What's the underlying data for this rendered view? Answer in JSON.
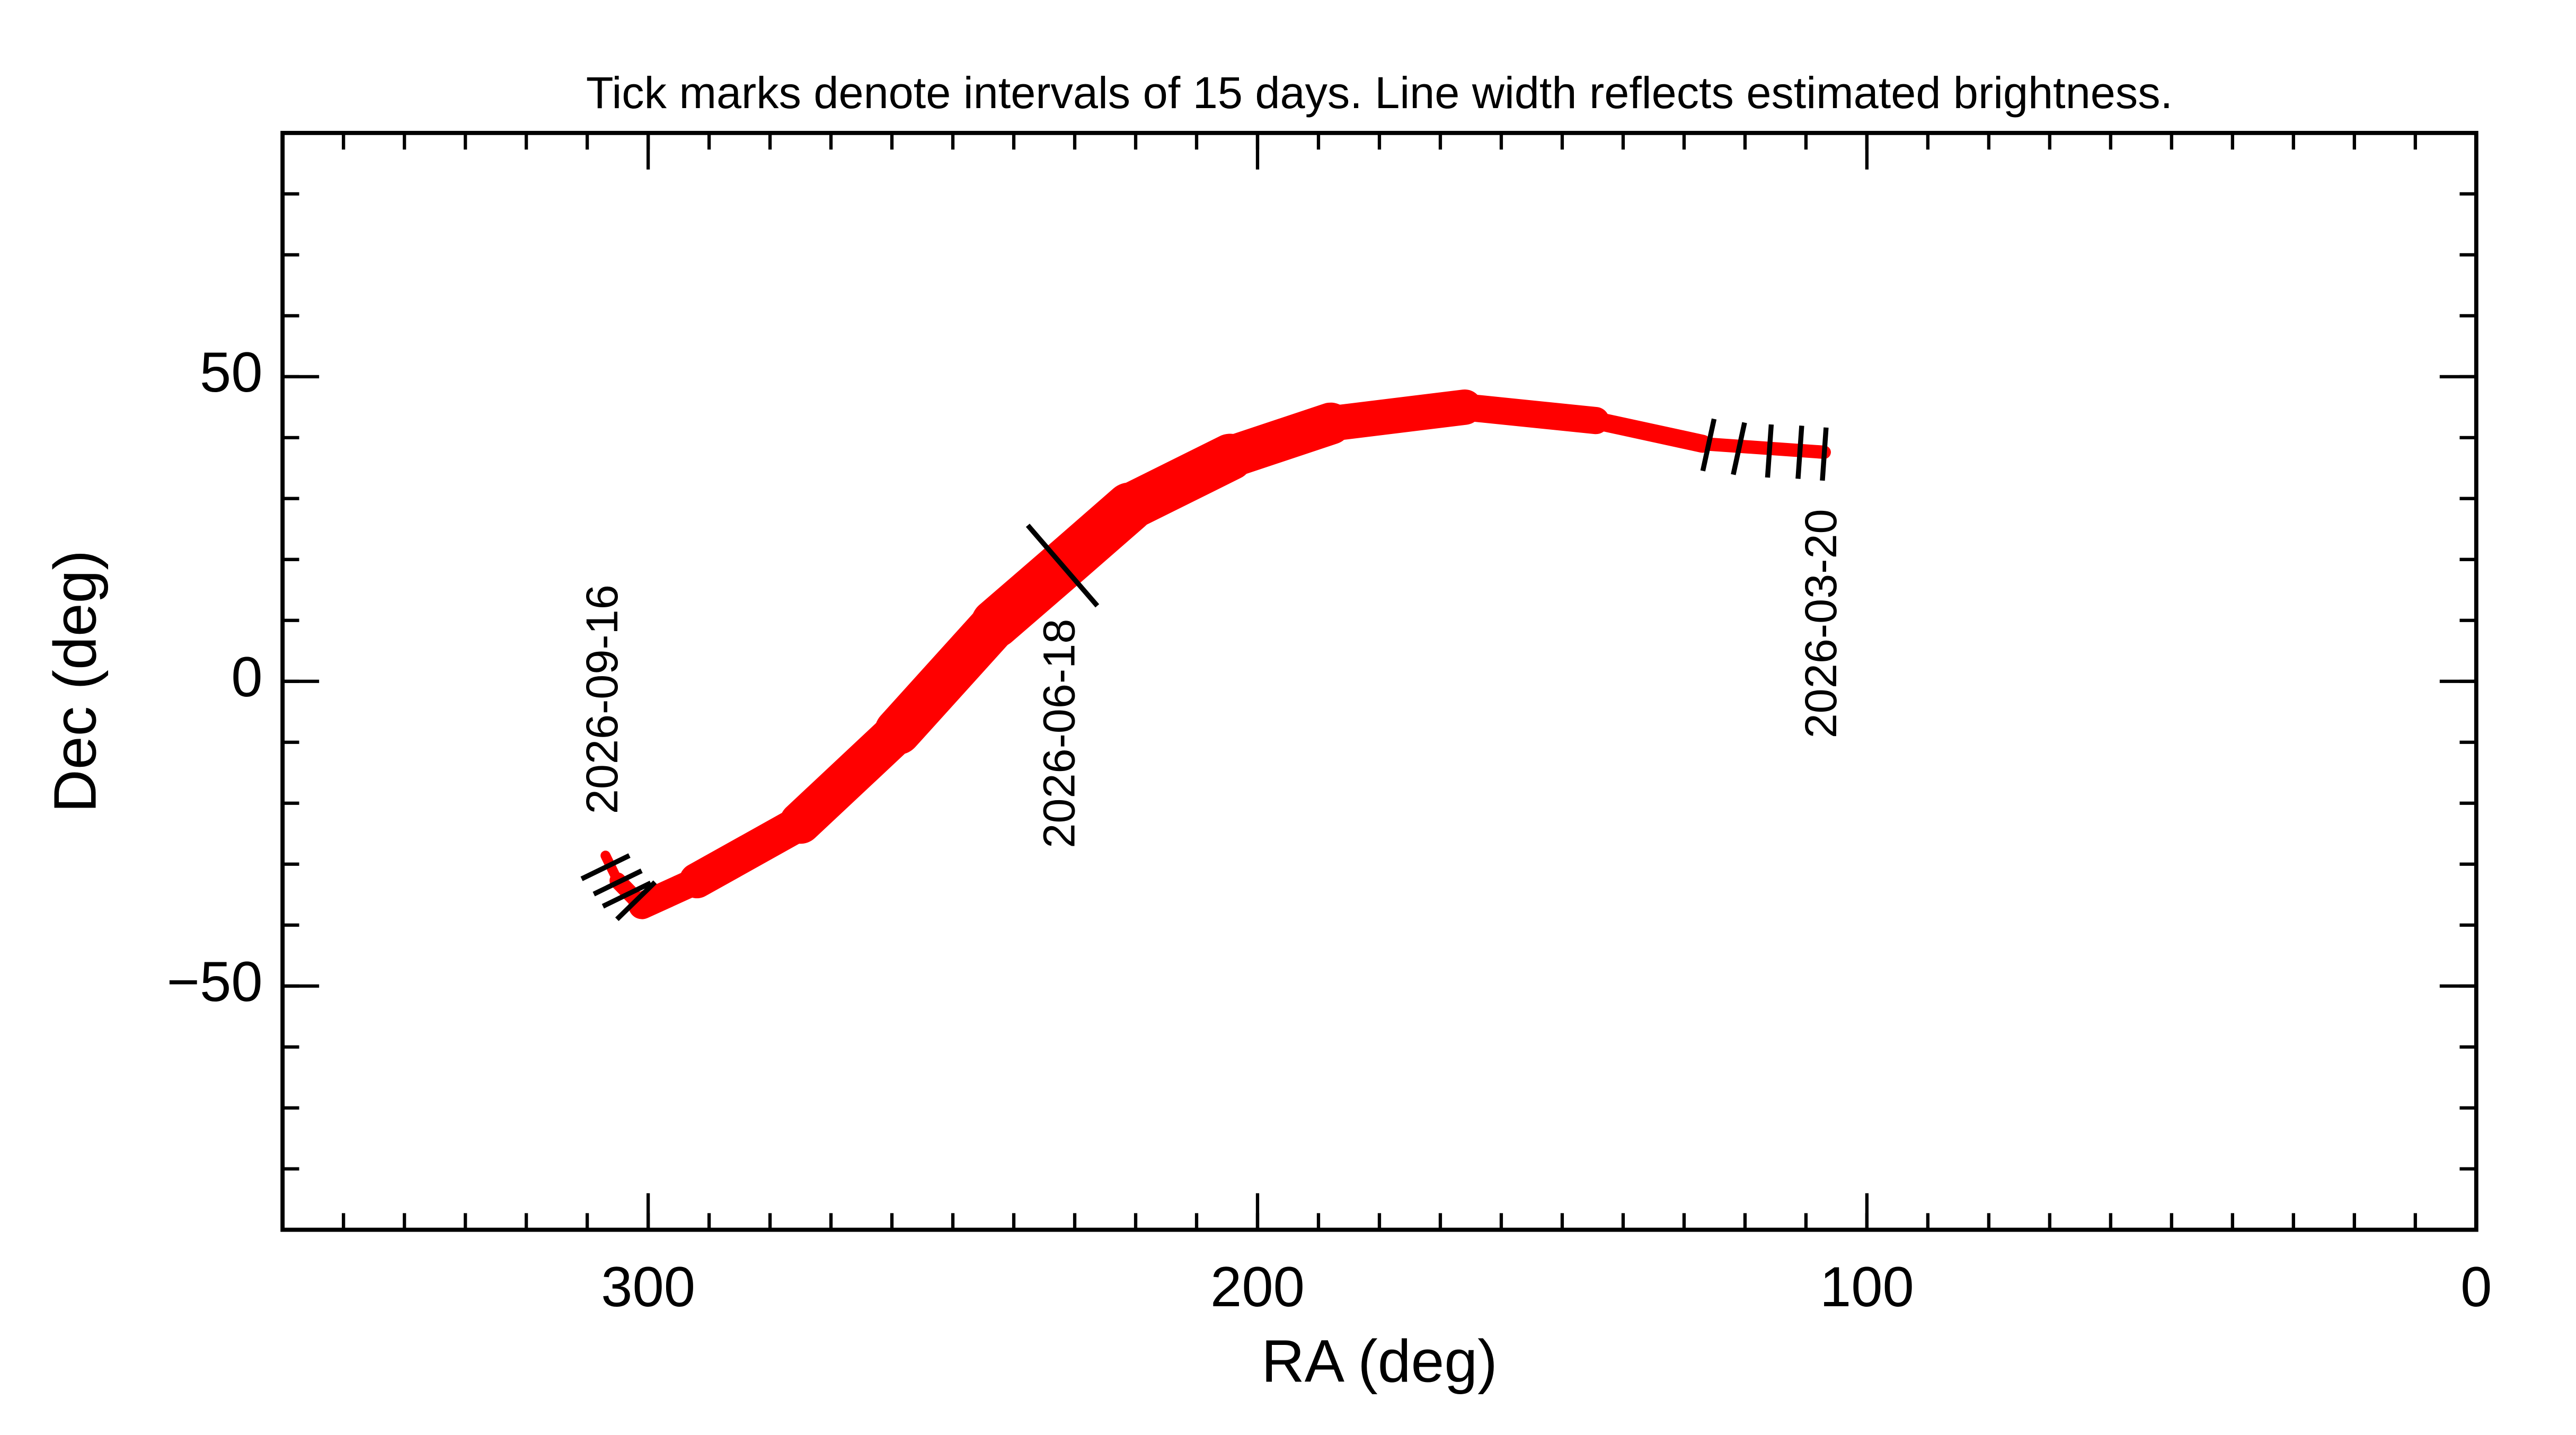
{
  "chart_data": {
    "type": "line",
    "title": "Tick marks denote intervals of 15 days.  Line width reflects estimated brightness.",
    "x_label": "RA (deg)",
    "y_label": "Dec (deg)",
    "xlim": [
      360,
      0
    ],
    "ylim": [
      -90,
      90
    ],
    "xticks": [
      300,
      200,
      100,
      0
    ],
    "yticks": [
      {
        "value": -50,
        "label": "−50"
      },
      0,
      50
    ],
    "series": [
      {
        "color": "#ff0000",
        "x": [
          107,
          127,
          144.5,
          166,
          188,
          204.5,
          221,
          232,
          243,
          259,
          275,
          292,
          301,
          305,
          307
        ],
        "values": [
          37.6,
          39,
          42.8,
          45,
          42.3,
          36.8,
          28.6,
          19,
          9.5,
          -8.2,
          -23.2,
          -32.7,
          -36.8,
          -32.7,
          -28.6
        ]
      }
    ],
    "date_ticks": {
      "color": "#000000",
      "x": [
        126,
        121,
        116,
        111,
        107,
        232,
        302,
        303.5,
        305,
        307
      ],
      "y": [
        38.8,
        38.2,
        37.8,
        37.6,
        37.3,
        19,
        -36,
        -35,
        -33,
        -30.5
      ]
    },
    "annotations": [
      {
        "text": "2026-03-20",
        "x": 107,
        "y": 37.3
      },
      {
        "text": "2026-06-18",
        "x": 232,
        "y": 19
      },
      {
        "text": "2026-09-16",
        "x": 307,
        "y": -28.6
      }
    ]
  }
}
